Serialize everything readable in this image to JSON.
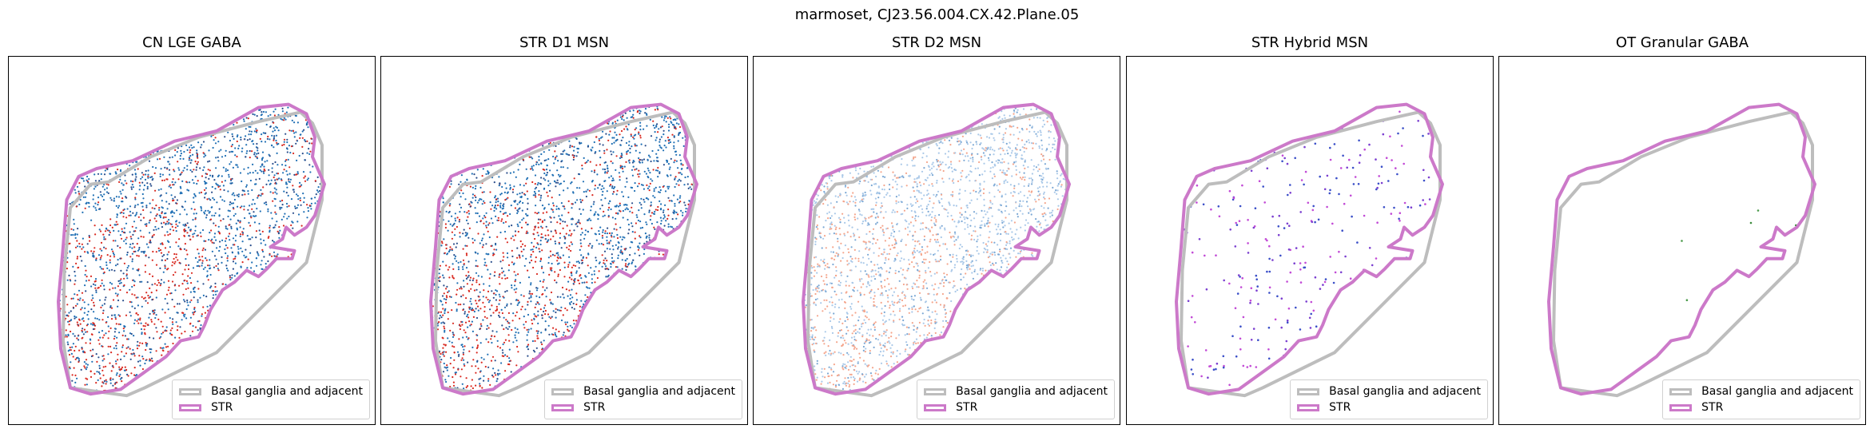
{
  "figure_title": "marmoset, CJ23.56.004.CX.42.Plane.05",
  "legend": {
    "items": [
      {
        "label": "Basal ganglia and adjacent",
        "color": "#bdbdbd"
      },
      {
        "label": "STR",
        "color": "#cc79c9"
      }
    ]
  },
  "chart_data": [
    {
      "type": "scatter",
      "title": "CN LGE GABA",
      "density": "high",
      "point_colors": [
        "#1f6fb4",
        "#d9281f",
        "#2b4e8c"
      ],
      "grid": false,
      "legend_placement": "bottom-right"
    },
    {
      "type": "scatter",
      "title": "STR D1 MSN",
      "density": "high",
      "point_colors": [
        "#1f6fb4",
        "#d9281f",
        "#2b4e8c"
      ],
      "grid": false,
      "legend_placement": "bottom-right"
    },
    {
      "type": "scatter",
      "title": "STR D2 MSN",
      "density": "high",
      "point_colors": [
        "#a9c8e8",
        "#f4a58c",
        "#7aa7d4"
      ],
      "grid": false,
      "legend_placement": "bottom-right"
    },
    {
      "type": "scatter",
      "title": "STR Hybrid MSN",
      "density": "sparse",
      "point_colors": [
        "#7b3fd0",
        "#c24ad6",
        "#3b4fc8"
      ],
      "grid": false,
      "legend_placement": "bottom-right"
    },
    {
      "type": "scatter",
      "title": "OT Granular GABA",
      "density": "very sparse",
      "point_colors": [
        "#3a8a3a",
        "#4a9a4a"
      ],
      "grid": false,
      "legend_placement": "bottom-right"
    }
  ]
}
